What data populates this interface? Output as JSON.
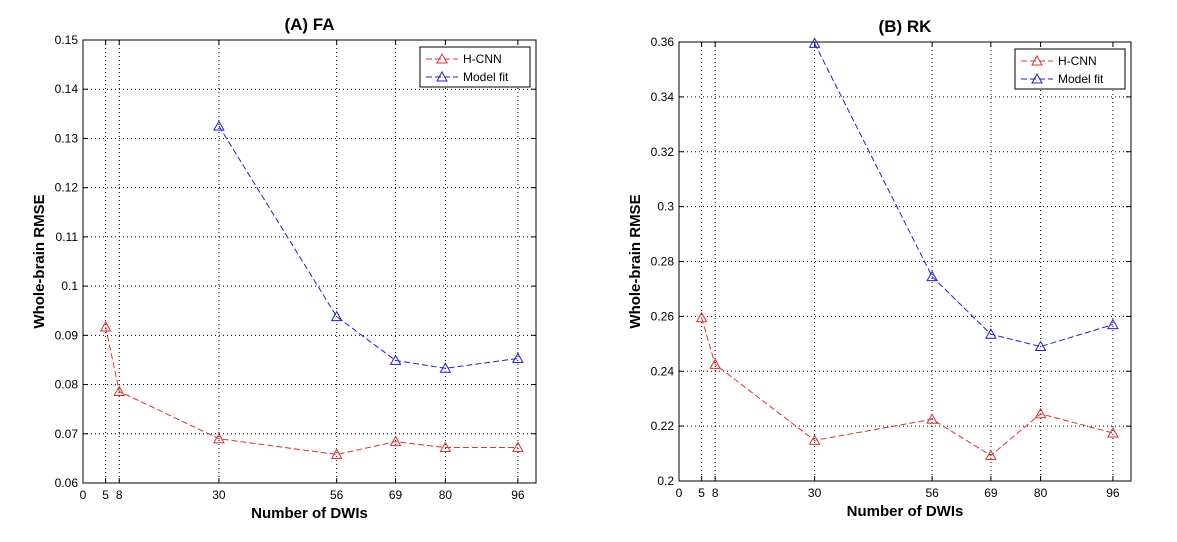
{
  "chart_data": [
    {
      "type": "line",
      "title": "(A) FA",
      "xlabel": "Number of DWIs",
      "ylabel": "Whole-brain RMSE",
      "xlim": [
        0,
        100
      ],
      "ylim": [
        0.06,
        0.15
      ],
      "xticks": [
        0,
        5,
        8,
        30,
        56,
        69,
        80,
        96
      ],
      "xtick_labels": [
        "0",
        "5",
        "8",
        "30",
        "56",
        "69",
        "80",
        "96"
      ],
      "yticks": [
        0.06,
        0.07,
        0.08,
        0.09,
        0.1,
        0.11,
        0.12,
        0.13,
        0.14,
        0.15
      ],
      "ytick_labels": [
        "0.06",
        "0.07",
        "0.08",
        "0.09",
        "0.1",
        "0.11",
        "0.12",
        "0.13",
        "0.14",
        "0.15"
      ],
      "vgrid": [
        5,
        8,
        30,
        56,
        69,
        80,
        96
      ],
      "hgrid": [
        0.07,
        0.08,
        0.09,
        0.1,
        0.11,
        0.12,
        0.13,
        0.14
      ],
      "legend_position": "top-right",
      "series": [
        {
          "name": "H-CNN",
          "color": "#e03030",
          "marker": "triangle",
          "linestyle": "dashed",
          "x": [
            5,
            8,
            30,
            56,
            69,
            80,
            96
          ],
          "y": [
            0.0917,
            0.0786,
            0.069,
            0.0658,
            0.0684,
            0.0672,
            0.0672
          ]
        },
        {
          "name": "Model fit",
          "color": "#2020d0",
          "marker": "triangle",
          "linestyle": "dashed",
          "x": [
            30,
            56,
            69,
            80,
            96
          ],
          "y": [
            0.1325,
            0.0938,
            0.0849,
            0.0833,
            0.0853
          ]
        }
      ]
    },
    {
      "type": "line",
      "title": "(B) RK",
      "xlabel": "Number of DWIs",
      "ylabel": "Whole-brain RMSE",
      "xlim": [
        0,
        100
      ],
      "ylim": [
        0.2,
        0.36
      ],
      "xticks": [
        0,
        5,
        8,
        30,
        56,
        69,
        80,
        96
      ],
      "xtick_labels": [
        "0",
        "5",
        "8",
        "30",
        "56",
        "69",
        "80",
        "96"
      ],
      "yticks": [
        0.2,
        0.22,
        0.24,
        0.26,
        0.28,
        0.3,
        0.32,
        0.34,
        0.36
      ],
      "ytick_labels": [
        "0.2",
        "0.22",
        "0.24",
        "0.26",
        "0.28",
        "0.3",
        "0.32",
        "0.34",
        "0.36"
      ],
      "vgrid": [
        5,
        8,
        30,
        56,
        69,
        80,
        96
      ],
      "hgrid": [
        0.22,
        0.24,
        0.26,
        0.28,
        0.3,
        0.32,
        0.34
      ],
      "legend_position": "top-right",
      "series": [
        {
          "name": "H-CNN",
          "color": "#e03030",
          "marker": "triangle",
          "linestyle": "dashed",
          "x": [
            5,
            8,
            30,
            56,
            69,
            80,
            96
          ],
          "y": [
            0.2595,
            0.2425,
            0.2148,
            0.2225,
            0.2093,
            0.2245,
            0.2175
          ]
        },
        {
          "name": "Model fit",
          "color": "#2020d0",
          "marker": "triangle",
          "linestyle": "dashed",
          "x": [
            30,
            56,
            69,
            80,
            96
          ],
          "y": [
            0.3595,
            0.2745,
            0.2535,
            0.249,
            0.257
          ]
        }
      ]
    }
  ]
}
